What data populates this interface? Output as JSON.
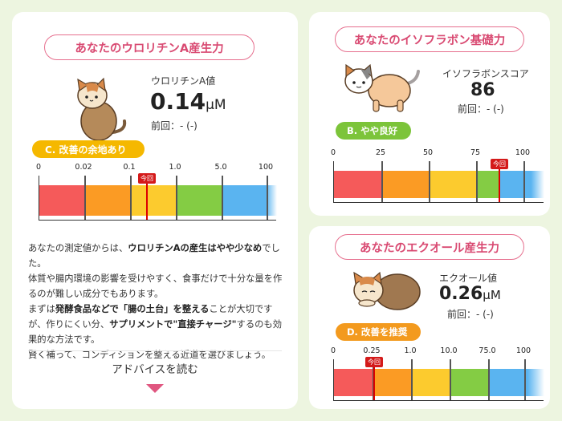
{
  "urolithin": {
    "title": "あなたのウロリチンA産生力",
    "value_label": "ウロリチンA値",
    "value": "0.14",
    "unit": "μM",
    "previous": "前回：-  (-)",
    "grade": "C. 改善の余地あり",
    "grade_color": "#f5b800",
    "ticks": [
      "0",
      "0.02",
      "0.1",
      "1.0",
      "5.0",
      "100"
    ],
    "previous_flag": "今回",
    "advice": {
      "p1": "あなたの測定値からは、",
      "p1b": "ウロリチンAの産生はやや少なめ",
      "p1c": "でした。",
      "p2": "体質や腸内環境の影響を受けやすく、食事だけで十分な量を作るのが難しい成分でもあります。",
      "p3a": "まずは",
      "p3b": "発酵食品などで「腸の土台」を整える",
      "p3c": "ことが大切ですが、作りにくい分、",
      "p3d": "サプリメントで\"直接チャージ\"",
      "p3e": "するのも効果的な方法です。",
      "p4": "賢く補って、コンディションを整える近道を選びましょう。"
    },
    "read_more": "アドバイスを読む"
  },
  "isoflavone": {
    "title": "あなたのイソフラボン基礎力",
    "value_label": "イソフラボンスコア",
    "value": "86",
    "previous": "前回：-  (-)",
    "grade": "B. やや良好",
    "grade_color": "#7cc43a",
    "ticks": [
      "0",
      "25",
      "50",
      "75",
      "100"
    ],
    "previous_flag": "今回"
  },
  "equol": {
    "title": "あなたのエクオール産生力",
    "value_label": "エクオール値",
    "value": "0.26",
    "unit": "μM",
    "previous": "前回：-  (-)",
    "grade": "D. 改善を推奨",
    "grade_color": "#f39a1e",
    "ticks": [
      "0",
      "0.25",
      "1.0",
      "10.0",
      "75.0",
      "100"
    ],
    "previous_flag": "今回"
  },
  "colors": {
    "red": "#f55a5a",
    "orange": "#fb9b24",
    "yellow": "#fccb2e",
    "green": "#84cc44",
    "blue": "#5ab4f0",
    "accent_pink": "#e05680"
  }
}
